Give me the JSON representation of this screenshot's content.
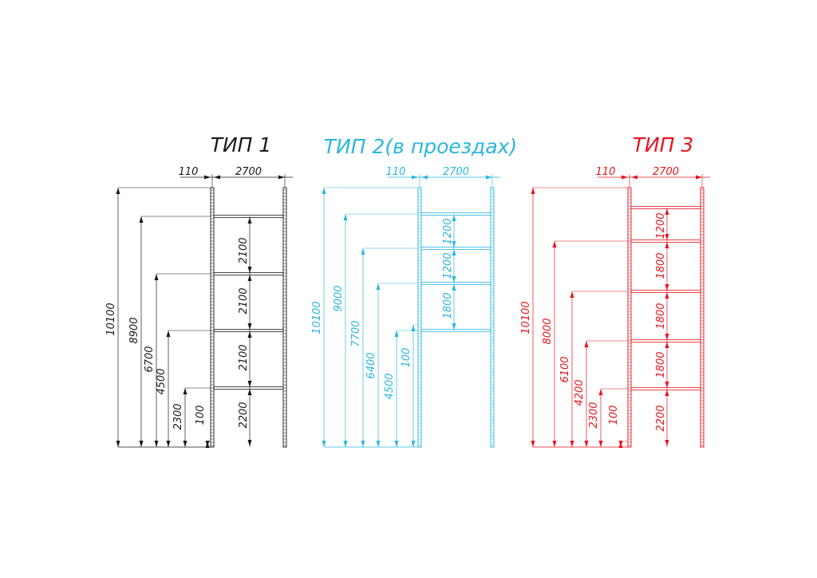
{
  "drawing": {
    "types": [
      {
        "id": "type1",
        "title": "ТИП 1",
        "color": "#1a1a1a",
        "post_width_label": "110",
        "bay_width_label": "2700",
        "level_heights": [
          "10100",
          "8900",
          "6700",
          "4500",
          "2300",
          "100"
        ],
        "span_heights": [
          "2100",
          "2100",
          "2100",
          "2200"
        ]
      },
      {
        "id": "type2",
        "title": "ТИП 2(в проездах)",
        "color": "#29b6e0",
        "post_width_label": "110",
        "bay_width_label": "2700",
        "level_heights": [
          "10100",
          "9000",
          "7700",
          "6400",
          "4500",
          "100"
        ],
        "span_heights": [
          "1200",
          "1200",
          "1800"
        ]
      },
      {
        "id": "type3",
        "title": "ТИП 3",
        "color": "#e8141c",
        "post_width_label": "110",
        "bay_width_label": "2700",
        "level_heights": [
          "10100",
          "8000",
          "6100",
          "4200",
          "2300",
          "100"
        ],
        "span_heights": [
          "1200",
          "1800",
          "1800",
          "1800",
          "2200"
        ]
      }
    ]
  }
}
